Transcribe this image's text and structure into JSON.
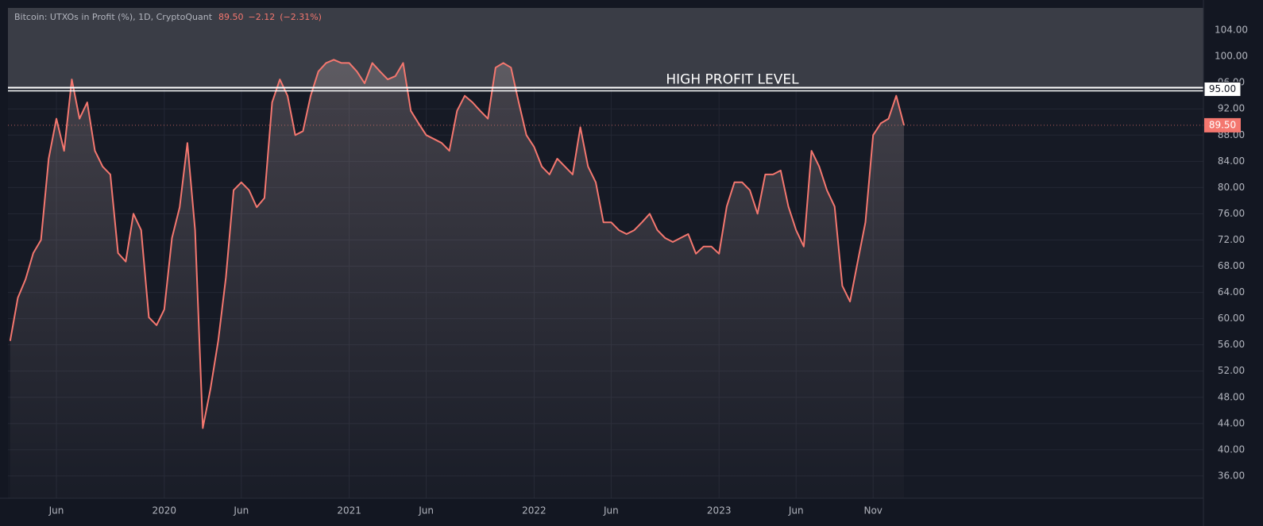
{
  "chart_data": {
    "type": "line",
    "title": "Bitcoin: UTXOs in Profit (%), 1D, CryptoQuant",
    "last_price": {
      "value": 89.5,
      "label": "89.50"
    },
    "change": {
      "value": -2.12,
      "label": "−2.12"
    },
    "change_pct": {
      "value": -2.31,
      "label": "(−2.31%)"
    },
    "reference_line": {
      "value": 95,
      "label": "95.00",
      "text": "HIGH PROFIT LEVEL"
    },
    "color": "#f4776f",
    "grid": true,
    "ylim": [
      32.6,
      107.4
    ],
    "yticks": [
      {
        "value": 36,
        "label": "36.00"
      },
      {
        "value": 40,
        "label": "40.00"
      },
      {
        "value": 44,
        "label": "44.00"
      },
      {
        "value": 48,
        "label": "48.00"
      },
      {
        "value": 52,
        "label": "52.00"
      },
      {
        "value": 56,
        "label": "56.00"
      },
      {
        "value": 60,
        "label": "60.00"
      },
      {
        "value": 64,
        "label": "64.00"
      },
      {
        "value": 68,
        "label": "68.00"
      },
      {
        "value": 72,
        "label": "72.00"
      },
      {
        "value": 76,
        "label": "76.00"
      },
      {
        "value": 80,
        "label": "80.00"
      },
      {
        "value": 84,
        "label": "84.00"
      },
      {
        "value": 88,
        "label": "88.00"
      },
      {
        "value": 92,
        "label": "92.00"
      },
      {
        "value": 96,
        "label": "96.00"
      },
      {
        "value": 100,
        "label": "100.00"
      },
      {
        "value": 104,
        "label": "104.00"
      }
    ],
    "categories": [
      null,
      null,
      null,
      null,
      null,
      null,
      "Jun",
      null,
      null,
      null,
      null,
      null,
      null,
      null,
      null,
      null,
      null,
      null,
      null,
      null,
      "2020",
      null,
      null,
      null,
      null,
      null,
      null,
      null,
      null,
      null,
      "Jun",
      null,
      null,
      null,
      null,
      null,
      null,
      null,
      null,
      null,
      null,
      null,
      null,
      null,
      "2021",
      null,
      null,
      null,
      null,
      null,
      null,
      null,
      null,
      null,
      "Jun",
      null,
      null,
      null,
      null,
      null,
      null,
      null,
      null,
      null,
      null,
      null,
      null,
      null,
      "2022",
      null,
      null,
      null,
      null,
      null,
      null,
      null,
      null,
      null,
      "Jun",
      null,
      null,
      null,
      null,
      null,
      null,
      null,
      null,
      null,
      null,
      null,
      null,
      null,
      "2023",
      null,
      null,
      null,
      null,
      null,
      null,
      null,
      null,
      null,
      "Jun",
      null,
      null,
      null,
      null,
      null,
      null,
      null,
      null,
      null,
      "Nov",
      null,
      null,
      null,
      null
    ],
    "values": [
      56.6,
      63.2,
      66,
      70,
      72,
      84.4,
      90.5,
      85.6,
      96.5,
      90.5,
      93,
      85.6,
      83.2,
      82,
      70,
      68.7,
      76,
      73.5,
      60.2,
      59,
      61.4,
      72.3,
      77,
      86.8,
      73.5,
      43.3,
      49.3,
      56.6,
      66.3,
      79.6,
      80.8,
      79.6,
      77,
      78.4,
      93,
      96.5,
      94,
      88,
      88.6,
      94,
      97.7,
      99,
      99.5,
      99,
      99,
      97.7,
      95.9,
      99,
      97.7,
      96.5,
      97,
      99,
      91.7,
      89.8,
      88,
      87.4,
      86.8,
      85.6,
      91.7,
      94,
      93,
      91.7,
      90.5,
      98.3,
      99,
      98.3,
      93,
      88,
      86.2,
      83.2,
      82,
      84.4,
      83.2,
      82,
      89.2,
      83.2,
      80.8,
      74.7,
      74.7,
      73.5,
      72.9,
      73.5,
      74.7,
      76,
      73.5,
      72.3,
      71.7,
      72.3,
      72.9,
      69.9,
      71,
      71,
      69.9,
      77.1,
      80.8,
      80.8,
      79.6,
      76,
      82,
      82,
      82.6,
      77.1,
      73.5,
      71,
      85.6,
      83.2,
      79.6,
      77.1,
      65,
      62.6,
      68.7,
      74.7,
      88,
      89.8,
      90.5,
      94,
      89.5
    ]
  }
}
